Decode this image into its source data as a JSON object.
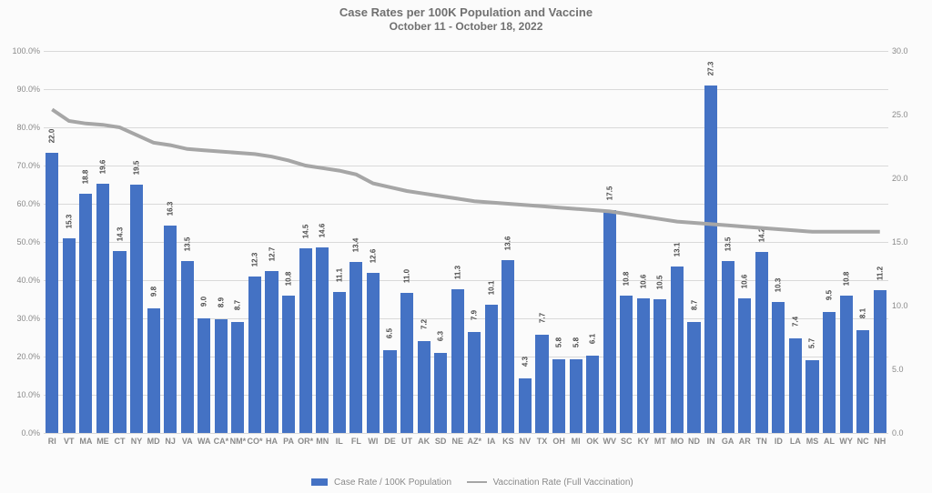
{
  "chart": {
    "type": "bar+line",
    "title": "Case Rates per 100K Population and Vaccine",
    "subtitle": "October 11 - October 18, 2022",
    "background_color": "#fbfbfb",
    "grid_color": "#d9d9d9",
    "text_color": "#707070",
    "bar_color": "#4472c4",
    "line_color": "#a6a6a6",
    "left_axis": {
      "min": 0,
      "max": 100,
      "step": 10,
      "format": "percent1",
      "label": ""
    },
    "right_axis": {
      "min": 0,
      "max": 30,
      "step": 5,
      "format": "decimal1",
      "label": ""
    },
    "categories": [
      "RI",
      "VT",
      "MA",
      "ME",
      "CT",
      "NY",
      "MD",
      "NJ",
      "VA",
      "WA",
      "CA*",
      "NM*",
      "CO*",
      "HA",
      "PA",
      "OR*",
      "MN",
      "IL",
      "FL",
      "WI",
      "DE",
      "UT",
      "AK",
      "SD",
      "NE",
      "AZ*",
      "IA",
      "KS",
      "NV",
      "TX",
      "OH",
      "MI",
      "OK",
      "WV",
      "SC",
      "KY",
      "MT",
      "MO",
      "ND",
      "IN",
      "GA",
      "AR",
      "TN",
      "ID",
      "LA",
      "MS",
      "AL",
      "WY",
      "NC",
      "NH"
    ],
    "bar_values": [
      22.0,
      15.3,
      18.8,
      19.6,
      14.3,
      19.5,
      9.8,
      16.3,
      13.5,
      9.0,
      8.9,
      8.7,
      12.3,
      12.7,
      10.8,
      14.5,
      14.6,
      11.1,
      13.4,
      12.6,
      6.5,
      11.0,
      7.2,
      6.3,
      11.3,
      7.9,
      10.1,
      13.6,
      4.3,
      7.7,
      5.8,
      5.8,
      6.1,
      17.5,
      10.8,
      10.6,
      10.5,
      13.1,
      8.7,
      27.3,
      13.5,
      10.6,
      14.2,
      10.3,
      7.4,
      5.7,
      9.5,
      10.8,
      8.1,
      11.2
    ],
    "line_values": [
      25.4,
      24.5,
      24.3,
      24.2,
      24.0,
      23.4,
      22.8,
      22.6,
      22.3,
      22.2,
      22.1,
      22.0,
      21.9,
      21.7,
      21.4,
      21.0,
      20.8,
      20.6,
      20.3,
      19.6,
      19.3,
      19.0,
      18.8,
      18.6,
      18.4,
      18.2,
      18.1,
      18.0,
      17.9,
      17.8,
      17.7,
      17.6,
      17.5,
      17.4,
      17.2,
      17.0,
      16.8,
      16.6,
      16.5,
      16.4,
      16.3,
      16.2,
      16.1,
      16.0,
      15.9,
      15.8,
      15.8,
      15.8,
      15.8,
      15.8
    ],
    "bar_value_labels": [
      "22.0",
      "15.3",
      "18.8",
      "19.6",
      "14.3",
      "19.5",
      "9.8",
      "16.3",
      "13.5",
      "9.0",
      "8.9",
      "8.7",
      "12.3",
      "12.7",
      "10.8",
      "14.5",
      "14.6",
      "11.1",
      "13.4",
      "12.6",
      "6.5",
      "11.0",
      "7.2",
      "6.3",
      "11.3",
      "7.9",
      "10.1",
      "13.6",
      "4.3",
      "7.7",
      "5.8",
      "5.8",
      "6.1",
      "17.5",
      "10.8",
      "10.6",
      "10.5",
      "13.1",
      "8.7",
      "27.3",
      "13.5",
      "10.6",
      "14.2",
      "10.3",
      "7.4",
      "5.7",
      "9.5",
      "10.8",
      "8.1",
      "11.2"
    ],
    "bar_width": 0.76,
    "bar_scale_denominator": 30,
    "legend": {
      "bar_label": "Case Rate / 100K Population",
      "line_label": "Vaccination Rate (Full Vaccination)"
    }
  }
}
